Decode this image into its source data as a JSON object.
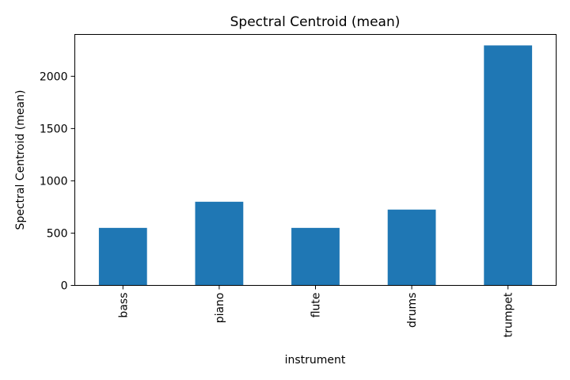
{
  "chart_data": {
    "type": "bar",
    "title": "Spectral Centroid (mean)",
    "xlabel": "instrument",
    "ylabel": "Spectral Centroid (mean)",
    "categories": [
      "bass",
      "piano",
      "flute",
      "drums",
      "trumpet"
    ],
    "values": [
      550,
      800,
      550,
      725,
      2295
    ],
    "ylim": [
      0,
      2400
    ],
    "yticks": [
      0,
      500,
      1000,
      1500,
      2000
    ],
    "bar_color": "#1f77b4",
    "grid": false,
    "legend": "none"
  }
}
